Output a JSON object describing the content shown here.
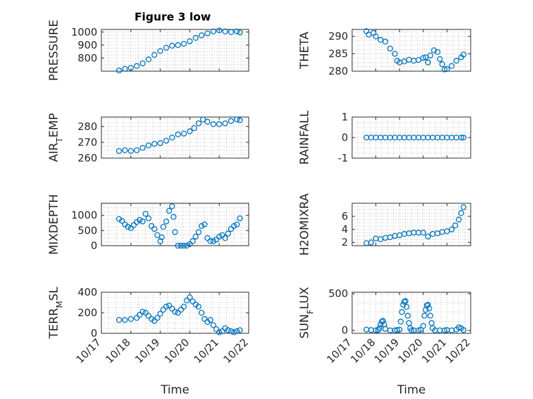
{
  "figure_title": "Figure 3 low",
  "x_axis": {
    "label": "Time",
    "tick_labels": [
      "10/17",
      "10/18",
      "10/19",
      "10/20",
      "10/21",
      "10/22"
    ],
    "range": [
      17,
      22
    ]
  },
  "marker_color": "#0072BD",
  "chart_data": [
    {
      "type": "scatter",
      "ylabel": "PRESSURE",
      "title": "Figure 3 low",
      "ylim": [
        700,
        1020
      ],
      "yticks": [
        800,
        900,
        1000
      ],
      "grid": true,
      "series": [
        {
          "x": [
            17.6,
            17.8,
            18.0,
            18.2,
            18.4,
            18.6,
            18.8,
            19.0,
            19.2,
            19.4,
            19.6,
            19.8,
            20.0,
            20.2,
            20.4,
            20.6,
            20.8,
            21.0,
            21.2,
            21.4,
            21.6,
            21.7
          ],
          "y": [
            705,
            718,
            725,
            740,
            760,
            790,
            825,
            855,
            880,
            895,
            900,
            910,
            930,
            955,
            975,
            990,
            1005,
            1012,
            1005,
            1000,
            1005,
            998
          ]
        }
      ]
    },
    {
      "type": "scatter",
      "ylabel": "THETA",
      "ylim": [
        280,
        292
      ],
      "yticks": [
        280,
        285,
        290
      ],
      "grid": true,
      "series": [
        {
          "x": [
            17.6,
            17.7,
            17.9,
            18.0,
            18.2,
            18.4,
            18.6,
            18.8,
            18.9,
            19.0,
            19.2,
            19.4,
            19.6,
            19.8,
            20.0,
            20.1,
            20.2,
            20.3,
            20.45,
            20.6,
            20.7,
            20.8,
            20.9,
            21.0,
            21.2,
            21.4,
            21.6,
            21.7
          ],
          "y": [
            291.5,
            290.5,
            291.0,
            290.0,
            289.0,
            288.5,
            286.5,
            285.0,
            283.0,
            282.5,
            282.8,
            283.3,
            283.0,
            283.2,
            283.8,
            284.0,
            282.5,
            284.5,
            286.0,
            285.5,
            283.5,
            282.0,
            280.5,
            280.6,
            281.5,
            283.0,
            284.0,
            284.8
          ]
        }
      ]
    },
    {
      "type": "scatter",
      "ylabel": "AIRTEMP",
      "ylim": [
        260,
        286
      ],
      "yticks": [
        260,
        270,
        280
      ],
      "grid": true,
      "series": [
        {
          "x": [
            17.6,
            17.8,
            18.0,
            18.2,
            18.4,
            18.6,
            18.8,
            19.0,
            19.2,
            19.4,
            19.6,
            19.8,
            20.0,
            20.15,
            20.3,
            20.45,
            20.6,
            20.8,
            21.0,
            21.2,
            21.4,
            21.6,
            21.7
          ],
          "y": [
            264.5,
            265.0,
            264.5,
            265.0,
            266.5,
            268.0,
            269.0,
            269.5,
            271.0,
            273.0,
            275.0,
            275.5,
            277.0,
            279.0,
            282.0,
            284.5,
            283.0,
            281.5,
            281.5,
            282.0,
            283.5,
            284.5,
            284.0
          ]
        }
      ]
    },
    {
      "type": "scatter",
      "ylabel": "RAINFALL",
      "ylim": [
        -1,
        1
      ],
      "yticks": [
        -1,
        0,
        1
      ],
      "grid": true,
      "series": [
        {
          "x": [
            17.6,
            17.8,
            18.0,
            18.2,
            18.4,
            18.6,
            18.8,
            19.0,
            19.2,
            19.4,
            19.6,
            19.8,
            20.0,
            20.2,
            20.4,
            20.6,
            20.8,
            21.0,
            21.2,
            21.4,
            21.6,
            21.7
          ],
          "y": [
            0,
            0,
            0,
            0,
            0,
            0,
            0,
            0,
            0,
            0,
            0,
            0,
            0,
            0,
            0,
            0,
            0,
            0,
            0,
            0,
            0,
            0
          ]
        }
      ]
    },
    {
      "type": "scatter",
      "ylabel": "MIXDEPTH",
      "ylim": [
        0,
        1400
      ],
      "yticks": [
        0,
        500,
        1000
      ],
      "grid": true,
      "series": [
        {
          "x": [
            17.6,
            17.7,
            17.8,
            17.9,
            18.0,
            18.1,
            18.2,
            18.3,
            18.4,
            18.5,
            18.6,
            18.7,
            18.8,
            18.9,
            19.0,
            19.05,
            19.1,
            19.2,
            19.3,
            19.4,
            19.45,
            19.5,
            19.6,
            19.7,
            19.8,
            19.9,
            20.0,
            20.1,
            20.2,
            20.3,
            20.4,
            20.5,
            20.6,
            20.7,
            20.8,
            20.9,
            21.0,
            21.1,
            21.2,
            21.3,
            21.4,
            21.5,
            21.6,
            21.7
          ],
          "y": [
            880,
            820,
            700,
            620,
            580,
            680,
            780,
            850,
            800,
            1050,
            900,
            650,
            550,
            350,
            150,
            280,
            620,
            800,
            1150,
            1300,
            950,
            450,
            0,
            0,
            0,
            0,
            50,
            150,
            300,
            450,
            650,
            700,
            250,
            150,
            150,
            200,
            300,
            350,
            250,
            400,
            550,
            650,
            700,
            900
          ]
        }
      ]
    },
    {
      "type": "scatter",
      "ylabel": "H2OMIXRA",
      "ylim": [
        1.5,
        8
      ],
      "yticks": [
        2,
        4,
        6
      ],
      "grid": true,
      "series": [
        {
          "x": [
            17.6,
            17.8,
            18.0,
            18.2,
            18.4,
            18.6,
            18.8,
            19.0,
            19.2,
            19.4,
            19.6,
            19.8,
            20.0,
            20.2,
            20.4,
            20.6,
            20.8,
            21.0,
            21.2,
            21.35,
            21.5,
            21.6,
            21.7
          ],
          "y": [
            1.9,
            2.0,
            2.6,
            2.5,
            2.7,
            2.8,
            3.0,
            3.1,
            3.3,
            3.4,
            3.5,
            3.5,
            3.5,
            2.9,
            3.3,
            3.4,
            3.6,
            3.7,
            4.0,
            4.6,
            5.5,
            6.5,
            7.4
          ]
        }
      ]
    },
    {
      "type": "scatter",
      "ylabel": "TERRMSL",
      "ylim": [
        0,
        400
      ],
      "yticks": [
        0,
        200,
        400
      ],
      "grid": true,
      "series": [
        {
          "x": [
            17.6,
            17.8,
            18.0,
            18.2,
            18.3,
            18.4,
            18.5,
            18.6,
            18.7,
            18.8,
            18.9,
            19.0,
            19.1,
            19.2,
            19.3,
            19.4,
            19.5,
            19.6,
            19.7,
            19.8,
            19.9,
            20.0,
            20.1,
            20.2,
            20.3,
            20.4,
            20.5,
            20.6,
            20.7,
            20.8,
            20.9,
            21.0,
            21.1,
            21.2,
            21.3,
            21.4,
            21.5,
            21.6,
            21.7
          ],
          "y": [
            130,
            130,
            140,
            150,
            180,
            210,
            200,
            170,
            140,
            120,
            150,
            190,
            230,
            260,
            270,
            240,
            210,
            200,
            230,
            260,
            320,
            350,
            310,
            280,
            260,
            200,
            140,
            110,
            130,
            80,
            40,
            10,
            20,
            50,
            30,
            20,
            10,
            20,
            30
          ]
        }
      ]
    },
    {
      "type": "scatter",
      "ylabel": "SUNFLUX",
      "ylim": [
        -40,
        520
      ],
      "yticks": [
        0,
        500
      ],
      "grid": true,
      "series": [
        {
          "x": [
            17.6,
            17.8,
            18.0,
            18.1,
            18.15,
            18.2,
            18.25,
            18.3,
            18.35,
            18.4,
            18.6,
            18.8,
            18.9,
            19.0,
            19.05,
            19.1,
            19.15,
            19.2,
            19.25,
            19.3,
            19.35,
            19.4,
            19.45,
            19.5,
            19.6,
            19.8,
            19.9,
            20.0,
            20.05,
            20.1,
            20.15,
            20.2,
            20.25,
            20.3,
            20.35,
            20.4,
            20.5,
            20.7,
            20.9,
            21.0,
            21.2,
            21.4,
            21.5,
            21.6,
            21.7
          ],
          "y": [
            10,
            5,
            0,
            5,
            30,
            80,
            120,
            130,
            80,
            20,
            0,
            0,
            5,
            10,
            120,
            250,
            350,
            390,
            400,
            320,
            200,
            100,
            30,
            0,
            0,
            0,
            10,
            60,
            200,
            280,
            340,
            350,
            300,
            200,
            100,
            30,
            0,
            0,
            0,
            5,
            0,
            10,
            40,
            30,
            5
          ]
        }
      ]
    }
  ]
}
